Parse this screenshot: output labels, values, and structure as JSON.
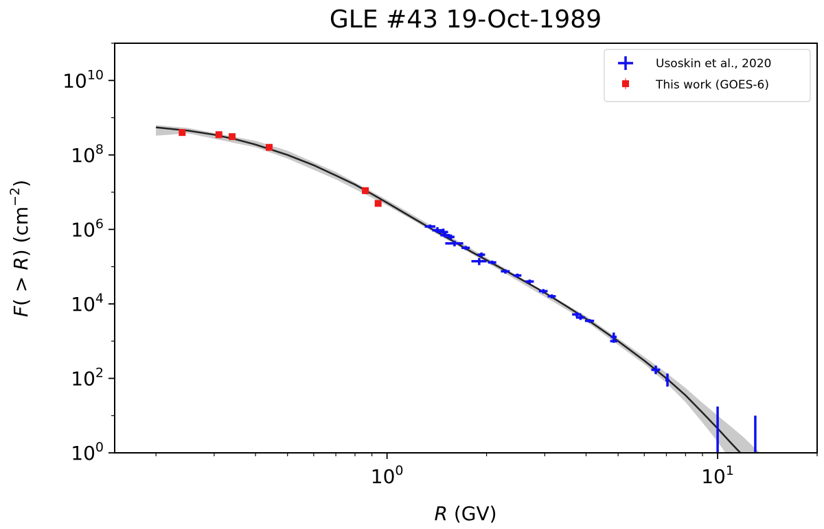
{
  "chart_data": {
    "type": "scatter",
    "title": "GLE #43   19-Oct-1989",
    "xlabel": {
      "italic": "R",
      "rest": " (GV)"
    },
    "ylabel": {
      "italic": "F",
      "mid": "( > ",
      "italic2": "R",
      "rest": ") (cm",
      "sup": "−2",
      "end": ")"
    },
    "xscale": "log",
    "yscale": "log",
    "xlim": [
      0.15,
      20
    ],
    "ylim": [
      1,
      100000000000.0
    ],
    "x_ticks": [
      {
        "value": 1,
        "base": "10",
        "exp": "0"
      },
      {
        "value": 10,
        "base": "10",
        "exp": "1"
      }
    ],
    "y_ticks": [
      {
        "value": 1,
        "base": "10",
        "exp": "0"
      },
      {
        "value": 100,
        "base": "10",
        "exp": "2"
      },
      {
        "value": 10000,
        "base": "10",
        "exp": "4"
      },
      {
        "value": 1000000,
        "base": "10",
        "exp": "6"
      },
      {
        "value": 100000000,
        "base": "10",
        "exp": "8"
      },
      {
        "value": 10000000000,
        "base": "10",
        "exp": "10"
      }
    ],
    "legend": {
      "position": "top-right",
      "entries": [
        {
          "label": "Usoskin et al., 2020",
          "color": "#1010ee",
          "marker": "errorbar"
        },
        {
          "label": "This work (GOES-6)",
          "color": "#ee1a1a",
          "marker": "square"
        }
      ]
    },
    "fit_curve": {
      "name": "fit",
      "color": "#222222",
      "band_color": "#c4c4c4",
      "points": [
        [
          0.2,
          550000000.0
        ],
        [
          0.25,
          450000000.0
        ],
        [
          0.3,
          350000000.0
        ],
        [
          0.35,
          260000000.0
        ],
        [
          0.4,
          190000000.0
        ],
        [
          0.5,
          100000000.0
        ],
        [
          0.6,
          53000000.0
        ],
        [
          0.7,
          28000000.0
        ],
        [
          0.8,
          16000000.0
        ],
        [
          0.9,
          8900000.0
        ],
        [
          1.0,
          5200000.0
        ],
        [
          1.2,
          2000000.0
        ],
        [
          1.4,
          900000.0
        ],
        [
          1.6,
          460000.0
        ],
        [
          1.8,
          250000.0
        ],
        [
          2.0,
          150000.0
        ],
        [
          2.5,
          50000.0
        ],
        [
          3.0,
          20000.0
        ],
        [
          3.5,
          8500.0
        ],
        [
          4.0,
          4000.0
        ],
        [
          5.0,
          1000.0
        ],
        [
          6.0,
          300.0
        ],
        [
          7.0,
          100.0
        ],
        [
          8.0,
          35
        ],
        [
          9.0,
          12
        ],
        [
          10.0,
          4.5
        ],
        [
          11.0,
          1.8
        ],
        [
          12.0,
          0.8
        ]
      ],
      "band": [
        [
          0.2,
          330000000.0,
          630000000.0
        ],
        [
          0.25,
          380000000.0,
          530000000.0
        ],
        [
          0.4,
          160000000.0,
          240000000.0
        ],
        [
          0.5,
          80000000.0,
          130000000.0
        ],
        [
          0.7,
          22000000.0,
          35000000.0
        ],
        [
          1.0,
          4400000.0,
          6200000.0
        ],
        [
          2.0,
          130000.0,
          175000.0
        ],
        [
          4.0,
          3400.0,
          4700.0
        ],
        [
          6.0,
          240.0,
          380.0
        ],
        [
          7.0,
          75,
          140.0
        ],
        [
          8.0,
          23,
          55
        ],
        [
          9.0,
          6.5,
          22
        ],
        [
          10.0,
          2.0,
          10
        ],
        [
          11.0,
          0.6,
          5
        ],
        [
          12.0,
          0.2,
          2.6
        ],
        [
          13.0,
          0.05,
          1.3
        ],
        [
          14.5,
          0.02,
          0.6
        ]
      ]
    },
    "series": [
      {
        "name": "Usoskin et al., 2020",
        "color": "#1010ee",
        "marker": "errorbar",
        "points": [
          {
            "x": 1.35,
            "y": 1200000.0,
            "xerr": 0.05,
            "yerr_lo": 150000.0,
            "yerr_hi": 150000.0
          },
          {
            "x": 1.42,
            "y": 950000.0,
            "xerr": 0.05,
            "yerr_lo": 150000.0,
            "yerr_hi": 200000.0
          },
          {
            "x": 1.48,
            "y": 850000.0,
            "xerr": 0.05,
            "yerr_lo": 150000.0,
            "yerr_hi": 200000.0
          },
          {
            "x": 1.5,
            "y": 700000.0,
            "xerr": 0.05,
            "yerr_lo": 100000.0,
            "yerr_hi": 100000.0
          },
          {
            "x": 1.56,
            "y": 630000.0,
            "xerr": 0.04,
            "yerr_lo": 100000.0,
            "yerr_hi": 100000.0
          },
          {
            "x": 1.6,
            "y": 420000.0,
            "xerr": 0.1,
            "yerr_lo": 70000.0,
            "yerr_hi": 80000.0
          },
          {
            "x": 1.73,
            "y": 320000.0,
            "xerr": 0.05,
            "yerr_lo": 40000.0,
            "yerr_hi": 40000.0
          },
          {
            "x": 1.9,
            "y": 140000.0,
            "xerr": 0.1,
            "yerr_lo": 30000.0,
            "yerr_hi": 30000.0
          },
          {
            "x": 1.93,
            "y": 210000.0,
            "xerr": 0.05,
            "yerr_lo": 30000.0,
            "yerr_hi": 30000.0
          },
          {
            "x": 2.08,
            "y": 130000.0,
            "xerr": 0.06,
            "yerr_lo": 15000.0,
            "yerr_hi": 15000.0
          },
          {
            "x": 2.28,
            "y": 75000.0,
            "xerr": 0.07,
            "yerr_lo": 10000.0,
            "yerr_hi": 10000.0
          },
          {
            "x": 2.48,
            "y": 58000.0,
            "xerr": 0.07,
            "yerr_lo": 7000.0,
            "yerr_hi": 7000.0
          },
          {
            "x": 2.7,
            "y": 40000.0,
            "xerr": 0.08,
            "yerr_lo": 5000.0,
            "yerr_hi": 5000.0
          },
          {
            "x": 2.97,
            "y": 22000.0,
            "xerr": 0.09,
            "yerr_lo": 3000.0,
            "yerr_hi": 3000.0
          },
          {
            "x": 3.15,
            "y": 16000.0,
            "xerr": 0.09,
            "yerr_lo": 2000.0,
            "yerr_hi": 2000.0
          },
          {
            "x": 3.75,
            "y": 5200.0,
            "xerr": 0.12,
            "yerr_lo": 800.0,
            "yerr_hi": 800.0
          },
          {
            "x": 3.85,
            "y": 4300.0,
            "xerr": 0.12,
            "yerr_lo": 600.0,
            "yerr_hi": 600.0
          },
          {
            "x": 4.1,
            "y": 3500.0,
            "xerr": 0.13,
            "yerr_lo": 400.0,
            "yerr_hi": 400.0
          },
          {
            "x": 4.85,
            "y": 1300.0,
            "xerr": 0.1,
            "yerr_lo": 300.0,
            "yerr_hi": 400.0
          },
          {
            "x": 4.85,
            "y": 1000.0,
            "xerr": 0.12,
            "yerr_lo": 100.0,
            "yerr_hi": 100.0
          },
          {
            "x": 6.5,
            "y": 170,
            "xerr": 0.2,
            "yerr_lo": 40,
            "yerr_hi": 50
          },
          {
            "x": 7.05,
            "y": 90,
            "xerr": 0.1,
            "yerr_lo": 30,
            "yerr_hi": 45
          },
          {
            "x": 10.0,
            "y": 0.5,
            "xerr": 0.0,
            "yerr_lo": 0.45,
            "yerr_hi": 17
          },
          {
            "x": 13.0,
            "y": 0.5,
            "xerr": 0.0,
            "yerr_lo": 0.45,
            "yerr_hi": 9.5
          }
        ]
      },
      {
        "name": "This work (GOES-6)",
        "color": "#ee1a1a",
        "marker": "square",
        "points": [
          {
            "x": 0.24,
            "y": 400000000.0
          },
          {
            "x": 0.31,
            "y": 350000000.0
          },
          {
            "x": 0.34,
            "y": 310000000.0
          },
          {
            "x": 0.44,
            "y": 160000000.0
          },
          {
            "x": 0.86,
            "y": 11000000.0
          },
          {
            "x": 0.94,
            "y": 5000000.0
          }
        ]
      }
    ]
  }
}
